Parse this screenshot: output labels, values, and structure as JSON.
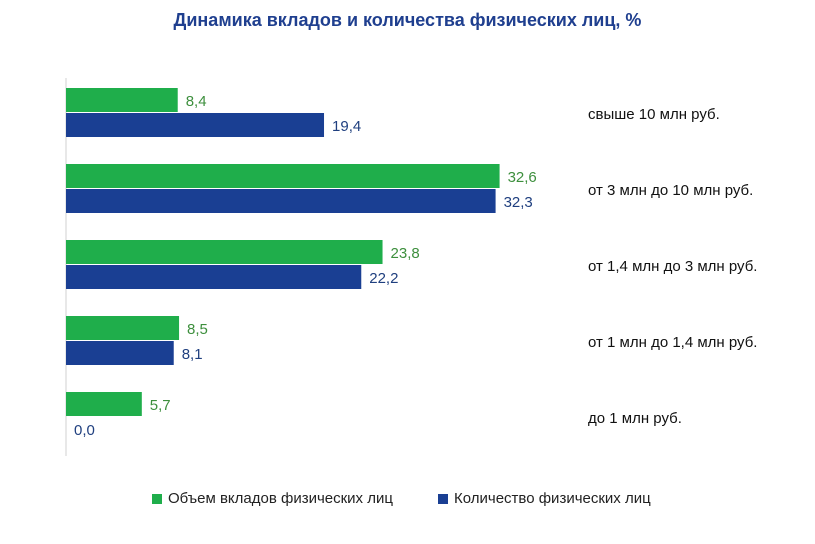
{
  "chart_data": {
    "type": "bar",
    "orientation": "horizontal",
    "title": "Динамика вкладов и количества физических лиц, %",
    "categories": [
      "свыше 10 млн руб.",
      "от 3 млн до 10 млн руб.",
      "от 1,4 млн до 3 млн руб.",
      "от 1 млн до 1,4 млн руб.",
      "до 1 млн руб."
    ],
    "series": [
      {
        "name": "Объем вкладов физических лиц",
        "color": "#1fae4b",
        "label_color": "#3d8f3d",
        "values": [
          8.4,
          32.6,
          23.8,
          8.5,
          5.7
        ],
        "labels": [
          "8,4",
          "32,6",
          "23,8",
          "8,5",
          "5,7"
        ]
      },
      {
        "name": "Количество физических лиц",
        "color": "#1a3f93",
        "label_color": "#1f3f7f",
        "values": [
          19.4,
          32.3,
          22.2,
          8.1,
          0.0
        ],
        "labels": [
          "19,4",
          "32,3",
          "22,2",
          "8,1",
          "0,0"
        ]
      }
    ],
    "legend": "bottom",
    "grid": false
  }
}
